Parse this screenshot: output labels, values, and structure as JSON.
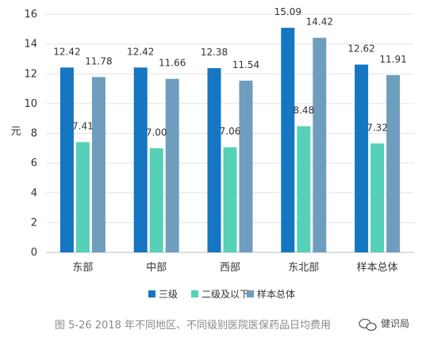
{
  "chart_data": {
    "type": "bar",
    "categories": [
      "东部",
      "中部",
      "西部",
      "东北部",
      "样本总体"
    ],
    "series": [
      {
        "name": "三级",
        "values": [
          12.42,
          12.42,
          12.38,
          15.09,
          12.62
        ],
        "color": "#1576c2"
      },
      {
        "name": "二级及以下",
        "values": [
          7.41,
          7.0,
          7.06,
          8.48,
          7.32
        ],
        "color": "#56d1b8"
      },
      {
        "name": "样本总体",
        "values": [
          11.78,
          11.66,
          11.54,
          14.42,
          11.91
        ],
        "color": "#6f9dbd"
      }
    ],
    "value_labels": [
      [
        "12.42",
        "12.42",
        "12.38",
        "15.09",
        "12.62"
      ],
      [
        "7.41",
        "7.00",
        "7.06",
        "8.48",
        "7.32"
      ],
      [
        "11.78",
        "11.66",
        "11.54",
        "14.42",
        "11.91"
      ]
    ],
    "ylabel": "元",
    "ylim": [
      0,
      16
    ],
    "yticks": [
      0,
      2,
      4,
      6,
      8,
      10,
      12,
      14,
      16
    ],
    "grid": true,
    "legend_position": "bottom"
  },
  "caption": "图 5-26 2018 年不同地区、不同级别医院医保药品日均费用",
  "watermark": "健识局"
}
